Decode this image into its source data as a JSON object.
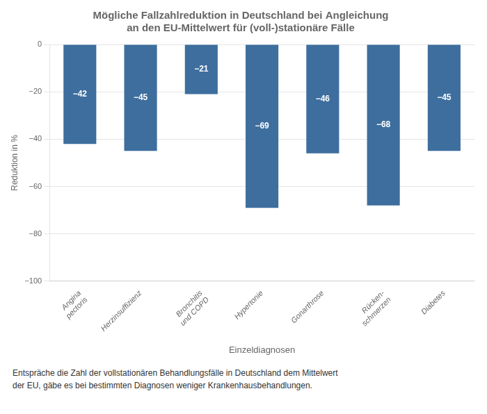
{
  "chart_data": {
    "type": "bar",
    "title": [
      "Mögliche Fallzahlreduktion in Deutschland bei Angleichung",
      "an den EU-Mittelwert für (voll-)stationäre Fälle"
    ],
    "xlabel": "Einzeldiagnosen",
    "ylabel": "Reduktion in %",
    "categories": [
      "Angina\npectoris",
      "Herzinsuffizienz",
      "Bronchitis\nund COPD",
      "Hypertonie",
      "Gonarthrose",
      "Rücken-\nschmerzen",
      "Diabetes"
    ],
    "values": [
      -42,
      -45,
      -21,
      -69,
      -46,
      -68,
      -45
    ],
    "value_labels": [
      "−42",
      "−45",
      "−21",
      "−69",
      "−46",
      "−68",
      "−45"
    ],
    "data_labels": true,
    "color": "#3D6E9E",
    "ylim": [
      -100,
      0
    ],
    "yticks": [
      0,
      {
        "value": -20,
        "label": "−20"
      },
      {
        "value": -40,
        "label": "−40"
      },
      {
        "value": -60,
        "label": "−60"
      },
      {
        "value": -80,
        "label": "−80"
      },
      {
        "value": -100,
        "label": "−100"
      }
    ],
    "grid": true,
    "annotations": [
      "Entspräche die Zahl der vollstationären Behandlungsfälle in Deutschland dem Mittelwert\nder EU, gäbe es bei bestimmten Diagnosen weniger Krankenhausbehandlungen."
    ]
  }
}
